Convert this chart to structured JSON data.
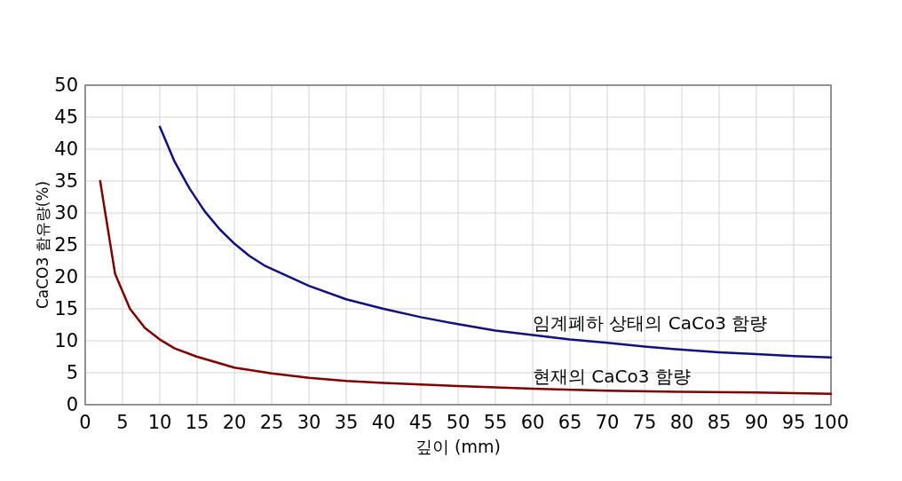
{
  "chart_data": {
    "type": "line",
    "xlabel": "깊이 (mm)",
    "ylabel": "CaCO3 함유량(%)",
    "xlim": [
      0,
      100
    ],
    "ylim": [
      0,
      50
    ],
    "xticks": [
      0,
      5,
      10,
      15,
      20,
      25,
      30,
      35,
      40,
      45,
      50,
      55,
      60,
      65,
      70,
      75,
      80,
      85,
      90,
      95,
      100
    ],
    "yticks": [
      0,
      5,
      10,
      15,
      20,
      25,
      30,
      35,
      40,
      45,
      50
    ],
    "grid": true,
    "marker": "none",
    "line_style": "solid",
    "series": [
      {
        "name": "임계폐하 상태의 CaCo3 함량",
        "color": "#101080",
        "x": [
          10,
          12,
          14,
          16,
          18,
          20,
          22,
          24,
          30,
          35,
          40,
          45,
          50,
          55,
          60,
          65,
          70,
          75,
          80,
          85,
          90,
          95,
          100
        ],
        "values": [
          43.5,
          38,
          33.8,
          30.3,
          27.5,
          25.2,
          23.3,
          21.8,
          18.6,
          16.5,
          15,
          13.7,
          12.6,
          11.6,
          10.9,
          10.2,
          9.7,
          9.1,
          8.6,
          8.2,
          7.9,
          7.6,
          7.4
        ]
      },
      {
        "name": "현재의 CaCo3 함량",
        "color": "#800000",
        "x": [
          2,
          4,
          6,
          8,
          10,
          12,
          15,
          20,
          25,
          30,
          35,
          40,
          50,
          60,
          70,
          80,
          90,
          100
        ],
        "values": [
          35,
          20.5,
          15,
          12,
          10.2,
          8.8,
          7.5,
          5.8,
          4.9,
          4.2,
          3.7,
          3.4,
          2.9,
          2.5,
          2.2,
          2,
          1.9,
          1.7
        ]
      }
    ]
  }
}
